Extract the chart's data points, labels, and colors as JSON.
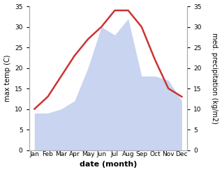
{
  "months": [
    "Jan",
    "Feb",
    "Mar",
    "Apr",
    "May",
    "Jun",
    "Jul",
    "Aug",
    "Sep",
    "Oct",
    "Nov",
    "Dec"
  ],
  "temperature": [
    10,
    13,
    18,
    23,
    27,
    30,
    34,
    34,
    30,
    22,
    15,
    13
  ],
  "precipitation": [
    9,
    9,
    10,
    12,
    20,
    30,
    28,
    32,
    18,
    18,
    17,
    12
  ],
  "temp_color": "#cc3333",
  "precip_fill_color": "#c8d4f0",
  "ylim": [
    0,
    35
  ],
  "xlabel": "date (month)",
  "ylabel_left": "max temp (C)",
  "ylabel_right": "med. precipitation (kg/m2)",
  "yticks": [
    0,
    5,
    10,
    15,
    20,
    25,
    30,
    35
  ],
  "background_color": "#ffffff",
  "line_width": 1.8,
  "spine_color": "#aaaaaa",
  "label_fontsize": 7,
  "tick_fontsize": 6.5,
  "xlabel_fontsize": 8
}
